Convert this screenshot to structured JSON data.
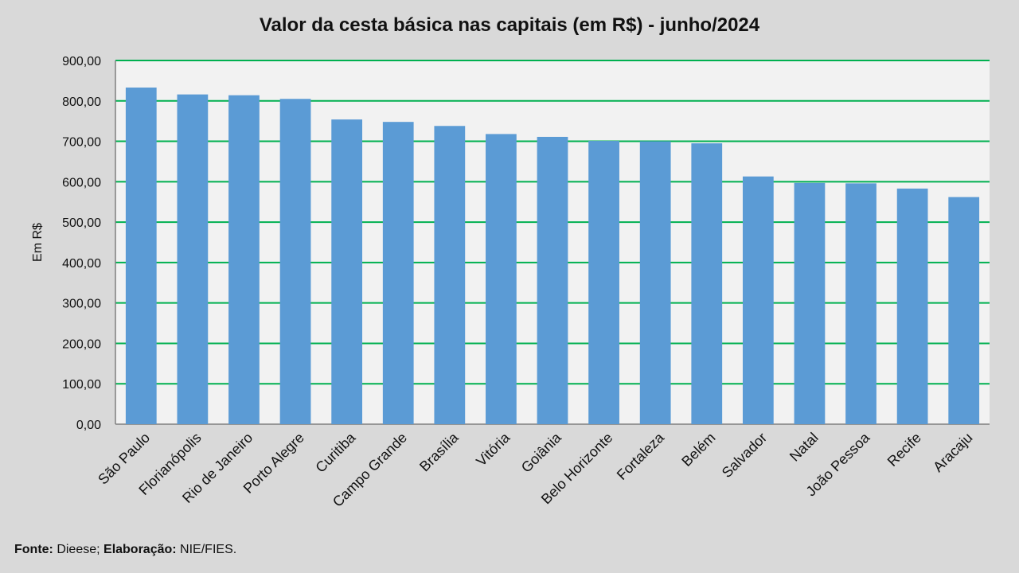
{
  "chart_data": {
    "type": "bar",
    "title": "Valor da cesta básica nas capitais (em R$) - junho/2024",
    "xlabel": "",
    "ylabel": "Em R$",
    "ylim": [
      0,
      900
    ],
    "yticks": [
      "0,00",
      "100,00",
      "200,00",
      "300,00",
      "400,00",
      "500,00",
      "600,00",
      "700,00",
      "800,00",
      "900,00"
    ],
    "categories": [
      "São Paulo",
      "Florianópolis",
      "Rio de Janeiro",
      "Porto Alegre",
      "Curitiba",
      "Campo Grande",
      "Brasília",
      "Vitória",
      "Goiânia",
      "Belo Horizonte",
      "Fortaleza",
      "Belém",
      "Salvador",
      "Natal",
      "João Pessoa",
      "Recife",
      "Aracaju"
    ],
    "values": [
      833,
      816,
      814,
      805,
      754,
      748,
      738,
      718,
      711,
      701,
      700,
      695,
      613,
      597,
      596,
      583,
      562
    ],
    "grid": true,
    "legend": "none",
    "colors": {
      "bar": "#5b9bd5",
      "grid": "#00b050",
      "plot_bg": "#f2f2f2",
      "page_bg": "#d9d9d9"
    }
  },
  "footer": {
    "fonte_label": "Fonte:",
    "fonte_value": " Dieese; ",
    "elab_label": "Elaboração:",
    "elab_value": " NIE/FIES."
  }
}
